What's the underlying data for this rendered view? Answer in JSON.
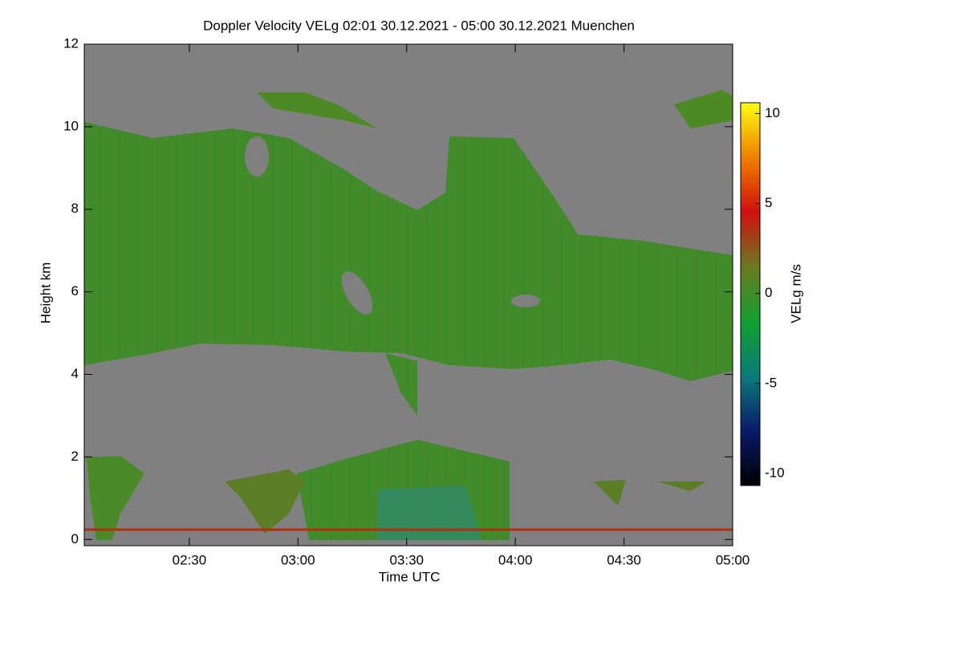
{
  "chart_data": {
    "type": "heatmap",
    "title": "Doppler Velocity VELg   02:01 30.12.2021 - 05:00 30.12.2021 Muenchen",
    "xlabel": "Time UTC",
    "ylabel": "Height km",
    "colorbar_label": "VELg m/s",
    "xlim": [
      "02:01",
      "05:00"
    ],
    "xticks": [
      "02:30",
      "03:00",
      "03:30",
      "04:00",
      "04:30",
      "05:00"
    ],
    "ylim": [
      -0.15,
      12
    ],
    "yticks": [
      0,
      2,
      4,
      6,
      8,
      10,
      12
    ],
    "clim": [
      -10.67,
      10.6
    ],
    "cticks": [
      -10,
      -5,
      0,
      5,
      10
    ],
    "colormap": [
      "#000000",
      "#0a1a6a",
      "#0a7a7a",
      "#12a030",
      "#6a7a20",
      "#d01010",
      "#f08000",
      "#ffff10"
    ]
  }
}
